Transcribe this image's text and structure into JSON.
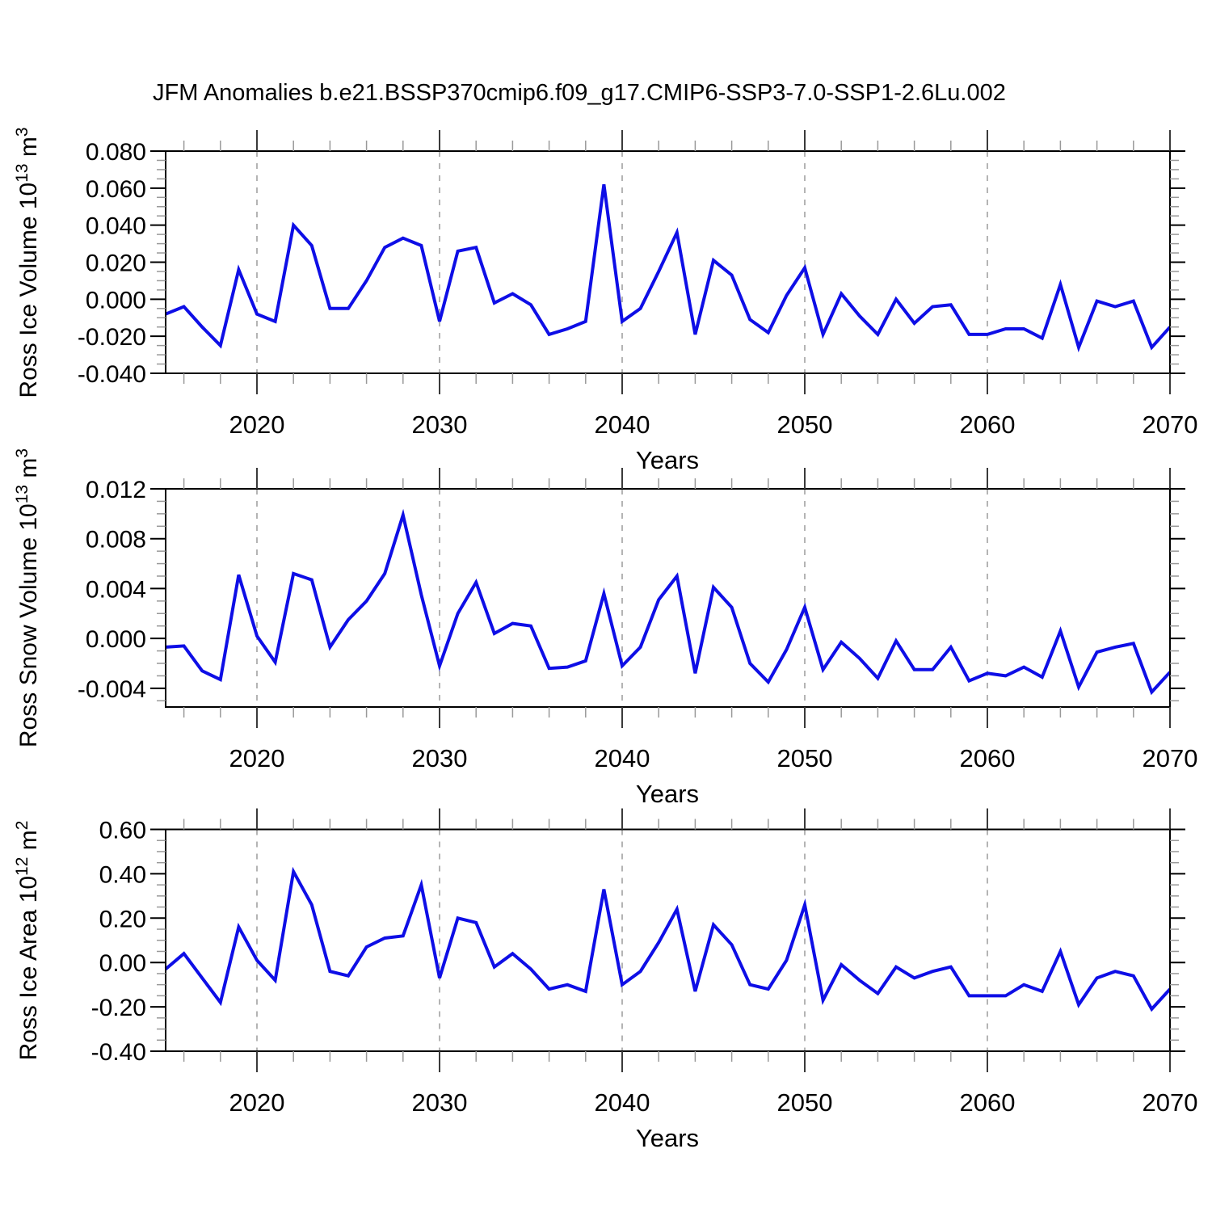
{
  "title": "JFM Anomalies b.e21.BSSP370cmip6.f09_g17.CMIP6-SSP3-7.0-SSP1-2.6Lu.002",
  "x_axis_label": "Years",
  "colors": {
    "line": "#0e0ee6",
    "frame": "#000000",
    "major_tick": "#3a3a3a",
    "minor_tick": "#999999",
    "gridline": "#9b9b9b",
    "background": "#ffffff",
    "text": "#000000"
  },
  "x_axis": {
    "start": 2015,
    "end": 2070,
    "major_tick_years": [
      2020,
      2030,
      2040,
      2050,
      2060,
      2070
    ],
    "major_tick_labels": [
      "2020",
      "2030",
      "2040",
      "2050",
      "2060",
      "2070"
    ],
    "minor_tick_step_years": 2,
    "gridline_years": [
      2020,
      2030,
      2040,
      2050,
      2060
    ],
    "gridline_style": "dashed"
  },
  "panels": [
    {
      "ylabel": {
        "base": "Ross Ice Volume 10",
        "sup1": "13",
        "mid": " m",
        "sup2": "3"
      }
    },
    {
      "ylabel": {
        "base": "Ross Snow Volume 10",
        "sup1": "13",
        "mid": " m",
        "sup2": "3"
      }
    },
    {
      "ylabel": {
        "base": "Ross Ice Area 10",
        "sup1": "12",
        "mid": " m",
        "sup2": "2"
      }
    }
  ],
  "chart_data": [
    {
      "type": "line",
      "name": "ross-ice-volume-anomaly",
      "title": "JFM Anomalies b.e21.BSSP370cmip6.f09_g17.CMIP6-SSP3-7.0-SSP1-2.6Lu.002",
      "ylabel": "Ross Ice Volume 10^13 m^3",
      "xlabel": "Years",
      "legend": "none",
      "grid": "vertical dashed gridlines at decades",
      "xlim": [
        2015,
        2070
      ],
      "ylim": [
        -0.04,
        0.08
      ],
      "ytick_values": [
        0.08,
        0.06,
        0.04,
        0.02,
        0.0,
        -0.02,
        -0.04
      ],
      "ytick_labels": [
        "0.080",
        "0.060",
        "0.040",
        "0.020",
        "0.000",
        "-0.020",
        "-0.040"
      ],
      "yminor_step": 0.005,
      "x": [
        2015,
        2016,
        2017,
        2018,
        2019,
        2020,
        2021,
        2022,
        2023,
        2024,
        2025,
        2026,
        2027,
        2028,
        2029,
        2030,
        2031,
        2032,
        2033,
        2034,
        2035,
        2036,
        2037,
        2038,
        2039,
        2040,
        2041,
        2042,
        2043,
        2044,
        2045,
        2046,
        2047,
        2048,
        2049,
        2050,
        2051,
        2052,
        2053,
        2054,
        2055,
        2056,
        2057,
        2058,
        2059,
        2060,
        2061,
        2062,
        2063,
        2064,
        2065,
        2066,
        2067,
        2068,
        2069,
        2070
      ],
      "values": [
        -0.008,
        -0.004,
        -0.015,
        -0.025,
        0.016,
        -0.008,
        -0.012,
        0.04,
        0.029,
        -0.005,
        -0.005,
        0.01,
        0.028,
        0.033,
        0.029,
        -0.012,
        0.026,
        0.028,
        -0.002,
        0.003,
        -0.003,
        -0.019,
        -0.016,
        -0.012,
        0.062,
        -0.012,
        -0.005,
        0.015,
        0.036,
        -0.019,
        0.021,
        0.013,
        -0.011,
        -0.018,
        0.002,
        0.017,
        -0.019,
        0.003,
        -0.009,
        -0.019,
        0.0,
        -0.013,
        -0.004,
        -0.003,
        -0.019,
        -0.019,
        -0.016,
        -0.016,
        -0.021,
        0.008,
        -0.026,
        -0.001,
        -0.004,
        -0.001,
        -0.026,
        -0.015
      ]
    },
    {
      "type": "line",
      "name": "ross-snow-volume-anomaly",
      "title": "JFM Anomalies b.e21.BSSP370cmip6.f09_g17.CMIP6-SSP3-7.0-SSP1-2.6Lu.002",
      "ylabel": "Ross Snow Volume 10^13 m^3",
      "xlabel": "Years",
      "legend": "none",
      "grid": "vertical dashed gridlines at decades",
      "xlim": [
        2015,
        2070
      ],
      "ylim": [
        -0.0055,
        0.012
      ],
      "ytick_values": [
        0.012,
        0.008,
        0.004,
        0.0,
        -0.004
      ],
      "ytick_labels": [
        "0.012",
        "0.008",
        "0.004",
        "0.000",
        "-0.004"
      ],
      "yminor_step": 0.001,
      "x": [
        2015,
        2016,
        2017,
        2018,
        2019,
        2020,
        2021,
        2022,
        2023,
        2024,
        2025,
        2026,
        2027,
        2028,
        2029,
        2030,
        2031,
        2032,
        2033,
        2034,
        2035,
        2036,
        2037,
        2038,
        2039,
        2040,
        2041,
        2042,
        2043,
        2044,
        2045,
        2046,
        2047,
        2048,
        2049,
        2050,
        2051,
        2052,
        2053,
        2054,
        2055,
        2056,
        2057,
        2058,
        2059,
        2060,
        2061,
        2062,
        2063,
        2064,
        2065,
        2066,
        2067,
        2068,
        2069,
        2070
      ],
      "values": [
        -0.0007,
        -0.0006,
        -0.0026,
        -0.0033,
        0.0051,
        0.0002,
        -0.0019,
        0.0052,
        0.0047,
        -0.0007,
        0.0015,
        0.003,
        0.0052,
        0.0099,
        0.0035,
        -0.0022,
        0.002,
        0.0045,
        0.0004,
        0.0012,
        0.001,
        -0.0024,
        -0.0023,
        -0.0018,
        0.0036,
        -0.0022,
        -0.0007,
        0.0031,
        0.005,
        -0.0028,
        0.0041,
        0.0025,
        -0.002,
        -0.0035,
        -0.0009,
        0.0025,
        -0.0025,
        -0.0003,
        -0.0016,
        -0.0032,
        -0.0002,
        -0.0025,
        -0.0025,
        -0.0007,
        -0.0034,
        -0.0028,
        -0.003,
        -0.0023,
        -0.0031,
        0.0006,
        -0.0039,
        -0.0011,
        -0.0007,
        -0.0004,
        -0.0043,
        -0.0027
      ]
    },
    {
      "type": "line",
      "name": "ross-ice-area-anomaly",
      "title": "JFM Anomalies b.e21.BSSP370cmip6.f09_g17.CMIP6-SSP3-7.0-SSP1-2.6Lu.002",
      "ylabel": "Ross Ice Area 10^12 m^2",
      "xlabel": "Years",
      "legend": "none",
      "grid": "vertical dashed gridlines at decades",
      "xlim": [
        2015,
        2070
      ],
      "ylim": [
        -0.4,
        0.6
      ],
      "ytick_values": [
        0.6,
        0.4,
        0.2,
        0.0,
        -0.2,
        -0.4
      ],
      "ytick_labels": [
        "0.60",
        "0.40",
        "0.20",
        "0.00",
        "-0.20",
        "-0.40"
      ],
      "yminor_step": 0.05,
      "x": [
        2015,
        2016,
        2017,
        2018,
        2019,
        2020,
        2021,
        2022,
        2023,
        2024,
        2025,
        2026,
        2027,
        2028,
        2029,
        2030,
        2031,
        2032,
        2033,
        2034,
        2035,
        2036,
        2037,
        2038,
        2039,
        2040,
        2041,
        2042,
        2043,
        2044,
        2045,
        2046,
        2047,
        2048,
        2049,
        2050,
        2051,
        2052,
        2053,
        2054,
        2055,
        2056,
        2057,
        2058,
        2059,
        2060,
        2061,
        2062,
        2063,
        2064,
        2065,
        2066,
        2067,
        2068,
        2069,
        2070
      ],
      "values": [
        -0.03,
        0.04,
        -0.07,
        -0.18,
        0.16,
        0.01,
        -0.08,
        0.41,
        0.26,
        -0.04,
        -0.06,
        0.07,
        0.11,
        0.12,
        0.35,
        -0.07,
        0.2,
        0.18,
        -0.02,
        0.04,
        -0.03,
        -0.12,
        -0.1,
        -0.13,
        0.33,
        -0.1,
        -0.04,
        0.09,
        0.24,
        -0.13,
        0.17,
        0.08,
        -0.1,
        -0.12,
        0.01,
        0.26,
        -0.17,
        -0.01,
        -0.08,
        -0.14,
        -0.02,
        -0.07,
        -0.04,
        -0.02,
        -0.15,
        -0.15,
        -0.15,
        -0.1,
        -0.13,
        0.05,
        -0.19,
        -0.07,
        -0.04,
        -0.06,
        -0.21,
        -0.12
      ]
    }
  ]
}
